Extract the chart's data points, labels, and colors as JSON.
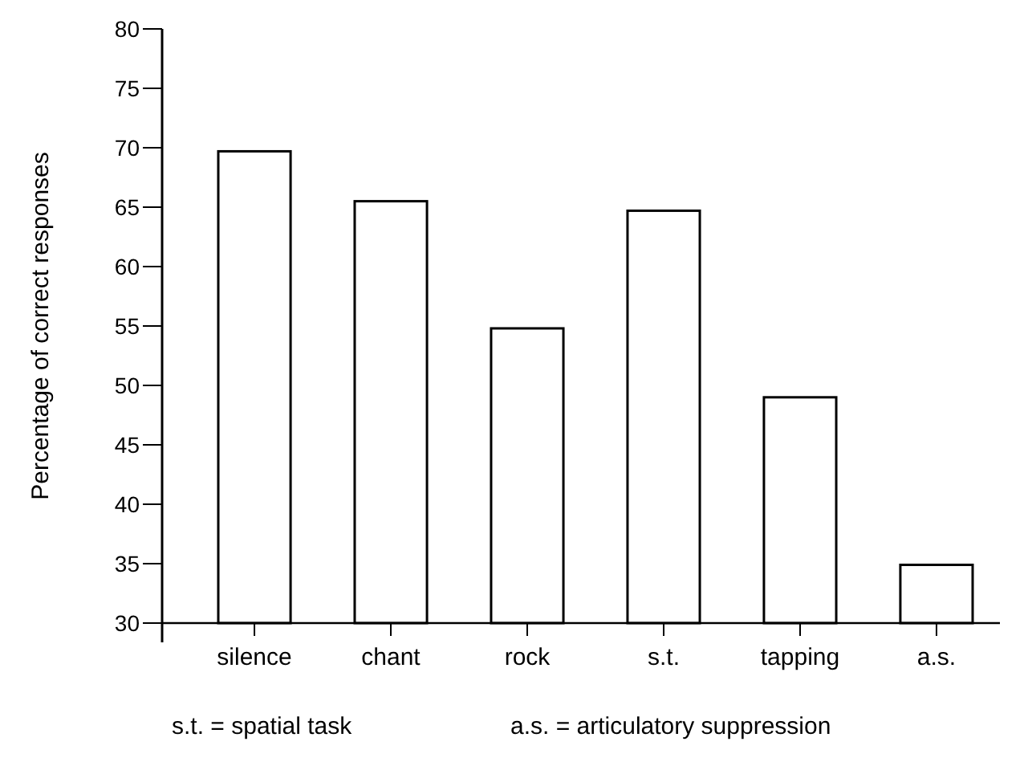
{
  "chart_data": {
    "type": "bar",
    "ylabel": "Percentage of correct responses",
    "categories": [
      "silence",
      "chant",
      "rock",
      "s.t.",
      "tapping",
      "a.s."
    ],
    "values": [
      69.7,
      65.5,
      54.8,
      64.7,
      49.0,
      34.9
    ],
    "color": "#ffffff",
    "ylim": [
      30,
      80
    ],
    "yticks": [
      30,
      35,
      40,
      45,
      50,
      55,
      60,
      65,
      70,
      75,
      80
    ],
    "grid": false,
    "annotations": [
      "s.t. = spatial task",
      "a.s. = articulatory suppression"
    ]
  }
}
